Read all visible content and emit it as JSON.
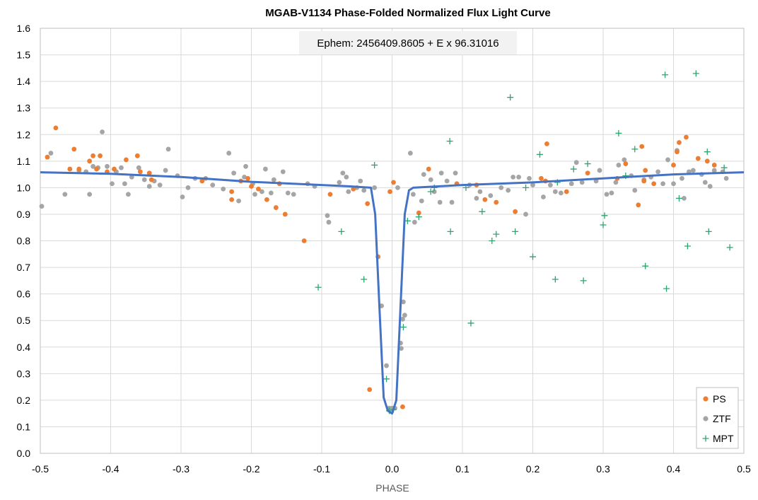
{
  "chart_data": {
    "type": "scatter",
    "title": "MGAB-V1134 Phase-Folded Normalized Flux Light Curve",
    "xlabel": "PHASE",
    "ylabel": "",
    "xlim": [
      -0.5,
      0.5
    ],
    "ylim": [
      0.0,
      1.6
    ],
    "xticks": [
      "-0.5",
      "-0.4",
      "-0.3",
      "-0.2",
      "-0.1",
      "0.0",
      "0.1",
      "0.2",
      "0.3",
      "0.4",
      "0.5"
    ],
    "yticks": [
      "0.0",
      "0.1",
      "0.2",
      "0.3",
      "0.4",
      "0.5",
      "0.6",
      "0.7",
      "0.8",
      "0.9",
      "1.0",
      "1.1",
      "1.2",
      "1.3",
      "1.4",
      "1.5",
      "1.6"
    ],
    "grid": true,
    "legend_position": "bottom-right",
    "annotation": "Ephem: 2456409.8605 + E x 96.31016",
    "colors": {
      "PS": "#ED7D31",
      "ZTF": "#A5A5A5",
      "MPT": "#2EA36F",
      "model": "#4472C4",
      "grid": "#D9D9D9"
    },
    "model_curve": {
      "x": [
        -0.5,
        -0.4,
        -0.3,
        -0.2,
        -0.1,
        -0.06,
        -0.03,
        -0.024,
        -0.018,
        -0.012,
        -0.006,
        0.0,
        0.006,
        0.012,
        0.018,
        0.024,
        0.03,
        0.1,
        0.2,
        0.3,
        0.4,
        0.5
      ],
      "y": [
        1.058,
        1.052,
        1.04,
        1.022,
        1.01,
        1.005,
        1.0,
        0.9,
        0.55,
        0.21,
        0.16,
        0.15,
        0.2,
        0.55,
        0.9,
        0.99,
        1.0,
        1.01,
        1.02,
        1.035,
        1.05,
        1.058
      ]
    },
    "series": [
      {
        "name": "PS",
        "marker": "circle",
        "points": [
          [
            -0.49,
            1.115
          ],
          [
            -0.478,
            1.225
          ],
          [
            -0.458,
            1.07
          ],
          [
            -0.452,
            1.145
          ],
          [
            -0.445,
            1.07
          ],
          [
            -0.43,
            1.1
          ],
          [
            -0.425,
            1.12
          ],
          [
            -0.42,
            1.07
          ],
          [
            -0.415,
            1.12
          ],
          [
            -0.405,
            1.06
          ],
          [
            -0.395,
            1.07
          ],
          [
            -0.378,
            1.105
          ],
          [
            -0.362,
            1.12
          ],
          [
            -0.358,
            1.06
          ],
          [
            -0.345,
            1.055
          ],
          [
            -0.342,
            1.03
          ],
          [
            -0.27,
            1.025
          ],
          [
            -0.228,
            0.955
          ],
          [
            -0.228,
            0.985
          ],
          [
            -0.215,
            1.025
          ],
          [
            -0.205,
            1.035
          ],
          [
            -0.2,
            1.005
          ],
          [
            -0.19,
            0.995
          ],
          [
            -0.178,
            0.955
          ],
          [
            -0.165,
            0.925
          ],
          [
            -0.16,
            1.015
          ],
          [
            -0.152,
            0.9
          ],
          [
            -0.125,
            0.8
          ],
          [
            -0.088,
            0.975
          ],
          [
            -0.055,
            0.995
          ],
          [
            -0.035,
            0.94
          ],
          [
            -0.032,
            0.24
          ],
          [
            -0.02,
            0.74
          ],
          [
            -0.003,
            0.985
          ],
          [
            0.002,
            1.02
          ],
          [
            0.015,
            0.175
          ],
          [
            0.038,
            0.905
          ],
          [
            0.052,
            1.07
          ],
          [
            0.092,
            1.015
          ],
          [
            0.12,
            1.01
          ],
          [
            0.132,
            0.955
          ],
          [
            0.148,
            0.945
          ],
          [
            0.175,
            0.91
          ],
          [
            0.212,
            1.035
          ],
          [
            0.218,
            1.025
          ],
          [
            0.22,
            1.165
          ],
          [
            0.248,
            0.985
          ],
          [
            0.278,
            1.055
          ],
          [
            0.32,
            1.035
          ],
          [
            0.332,
            1.09
          ],
          [
            0.35,
            0.935
          ],
          [
            0.355,
            1.155
          ],
          [
            0.36,
            1.065
          ],
          [
            0.358,
            1.025
          ],
          [
            0.372,
            1.015
          ],
          [
            0.4,
            1.085
          ],
          [
            0.405,
            1.135
          ],
          [
            0.408,
            1.17
          ],
          [
            0.418,
            1.19
          ],
          [
            0.435,
            1.11
          ],
          [
            0.448,
            1.1
          ],
          [
            0.458,
            1.085
          ]
        ]
      },
      {
        "name": "ZTF",
        "marker": "circle",
        "points": [
          [
            -0.498,
            0.93
          ],
          [
            -0.485,
            1.13
          ],
          [
            -0.465,
            0.975
          ],
          [
            -0.445,
            1.065
          ],
          [
            -0.435,
            1.06
          ],
          [
            -0.43,
            0.975
          ],
          [
            -0.425,
            1.08
          ],
          [
            -0.418,
            1.075
          ],
          [
            -0.412,
            1.21
          ],
          [
            -0.405,
            1.08
          ],
          [
            -0.398,
            1.015
          ],
          [
            -0.392,
            1.06
          ],
          [
            -0.385,
            1.075
          ],
          [
            -0.38,
            1.015
          ],
          [
            -0.375,
            0.975
          ],
          [
            -0.37,
            1.04
          ],
          [
            -0.36,
            1.075
          ],
          [
            -0.352,
            1.03
          ],
          [
            -0.345,
            1.005
          ],
          [
            -0.338,
            1.025
          ],
          [
            -0.33,
            1.01
          ],
          [
            -0.322,
            1.065
          ],
          [
            -0.318,
            1.145
          ],
          [
            -0.305,
            1.045
          ],
          [
            -0.298,
            0.965
          ],
          [
            -0.29,
            1.0
          ],
          [
            -0.28,
            1.035
          ],
          [
            -0.265,
            1.035
          ],
          [
            -0.255,
            1.01
          ],
          [
            -0.24,
            0.995
          ],
          [
            -0.232,
            1.13
          ],
          [
            -0.225,
            1.055
          ],
          [
            -0.218,
            0.95
          ],
          [
            -0.21,
            1.04
          ],
          [
            -0.208,
            1.08
          ],
          [
            -0.198,
            1.015
          ],
          [
            -0.195,
            0.975
          ],
          [
            -0.185,
            0.985
          ],
          [
            -0.18,
            1.07
          ],
          [
            -0.172,
            0.98
          ],
          [
            -0.168,
            1.03
          ],
          [
            -0.155,
            1.06
          ],
          [
            -0.148,
            0.98
          ],
          [
            -0.14,
            0.975
          ],
          [
            -0.12,
            1.015
          ],
          [
            -0.11,
            1.005
          ],
          [
            -0.092,
            0.895
          ],
          [
            -0.09,
            0.87
          ],
          [
            -0.075,
            1.02
          ],
          [
            -0.07,
            1.055
          ],
          [
            -0.065,
            1.04
          ],
          [
            -0.062,
            0.985
          ],
          [
            -0.05,
            1.0
          ],
          [
            -0.045,
            1.025
          ],
          [
            -0.04,
            0.99
          ],
          [
            -0.025,
            1.0
          ],
          [
            -0.015,
            0.555
          ],
          [
            -0.008,
            0.33
          ],
          [
            -0.004,
            0.17
          ],
          [
            0.0,
            0.17
          ],
          [
            0.004,
            0.17
          ],
          [
            0.008,
            1.0
          ],
          [
            0.012,
            0.415
          ],
          [
            0.013,
            0.395
          ],
          [
            0.015,
            0.505
          ],
          [
            0.016,
            0.57
          ],
          [
            0.018,
            0.52
          ],
          [
            0.026,
            1.13
          ],
          [
            0.03,
            0.975
          ],
          [
            0.032,
            0.87
          ],
          [
            0.042,
            0.95
          ],
          [
            0.045,
            1.05
          ],
          [
            0.055,
            1.03
          ],
          [
            0.06,
            0.985
          ],
          [
            0.068,
            0.945
          ],
          [
            0.07,
            1.055
          ],
          [
            0.078,
            1.025
          ],
          [
            0.085,
            0.945
          ],
          [
            0.09,
            1.055
          ],
          [
            0.11,
            1.01
          ],
          [
            0.12,
            0.96
          ],
          [
            0.125,
            0.985
          ],
          [
            0.14,
            0.97
          ],
          [
            0.155,
            1.0
          ],
          [
            0.165,
            0.99
          ],
          [
            0.172,
            1.04
          ],
          [
            0.18,
            1.04
          ],
          [
            0.19,
            0.9
          ],
          [
            0.195,
            1.035
          ],
          [
            0.2,
            1.01
          ],
          [
            0.215,
            0.965
          ],
          [
            0.225,
            1.01
          ],
          [
            0.232,
            0.985
          ],
          [
            0.24,
            0.98
          ],
          [
            0.255,
            1.015
          ],
          [
            0.262,
            1.095
          ],
          [
            0.27,
            1.02
          ],
          [
            0.29,
            1.025
          ],
          [
            0.295,
            1.065
          ],
          [
            0.305,
            0.975
          ],
          [
            0.312,
            0.98
          ],
          [
            0.318,
            1.02
          ],
          [
            0.322,
            1.085
          ],
          [
            0.33,
            1.105
          ],
          [
            0.34,
            1.045
          ],
          [
            0.345,
            0.99
          ],
          [
            0.358,
            1.03
          ],
          [
            0.368,
            1.04
          ],
          [
            0.378,
            1.06
          ],
          [
            0.385,
            1.015
          ],
          [
            0.392,
            1.105
          ],
          [
            0.4,
            1.015
          ],
          [
            0.405,
            1.14
          ],
          [
            0.412,
            1.035
          ],
          [
            0.415,
            0.96
          ],
          [
            0.422,
            1.06
          ],
          [
            0.428,
            1.065
          ],
          [
            0.44,
            1.05
          ],
          [
            0.445,
            1.02
          ],
          [
            0.452,
            1.005
          ],
          [
            0.458,
            1.065
          ],
          [
            0.47,
            1.06
          ],
          [
            0.475,
            1.035
          ]
        ]
      },
      {
        "name": "MPT",
        "marker": "plus",
        "points": [
          [
            -0.105,
            0.625
          ],
          [
            -0.072,
            0.835
          ],
          [
            -0.04,
            0.655
          ],
          [
            -0.025,
            1.085
          ],
          [
            -0.008,
            0.28
          ],
          [
            -0.004,
            0.16
          ],
          [
            0.002,
            0.165
          ],
          [
            0.016,
            0.475
          ],
          [
            0.022,
            0.875
          ],
          [
            0.038,
            0.89
          ],
          [
            0.055,
            0.985
          ],
          [
            0.06,
            1.0
          ],
          [
            0.082,
            1.175
          ],
          [
            0.083,
            0.835
          ],
          [
            0.105,
            1.0
          ],
          [
            0.112,
            0.49
          ],
          [
            0.128,
            0.91
          ],
          [
            0.142,
            0.8
          ],
          [
            0.148,
            0.825
          ],
          [
            0.168,
            1.34
          ],
          [
            0.175,
            0.835
          ],
          [
            0.19,
            1.0
          ],
          [
            0.2,
            0.74
          ],
          [
            0.21,
            1.125
          ],
          [
            0.232,
            0.655
          ],
          [
            0.235,
            1.02
          ],
          [
            0.258,
            1.07
          ],
          [
            0.272,
            0.65
          ],
          [
            0.278,
            1.09
          ],
          [
            0.3,
            0.86
          ],
          [
            0.302,
            0.895
          ],
          [
            0.322,
            1.205
          ],
          [
            0.332,
            1.045
          ],
          [
            0.345,
            1.145
          ],
          [
            0.36,
            0.705
          ],
          [
            0.388,
            1.425
          ],
          [
            0.39,
            0.62
          ],
          [
            0.408,
            0.96
          ],
          [
            0.42,
            0.78
          ],
          [
            0.432,
            1.43
          ],
          [
            0.448,
            1.135
          ],
          [
            0.45,
            0.835
          ],
          [
            0.472,
            1.075
          ],
          [
            0.48,
            0.775
          ]
        ]
      }
    ]
  }
}
